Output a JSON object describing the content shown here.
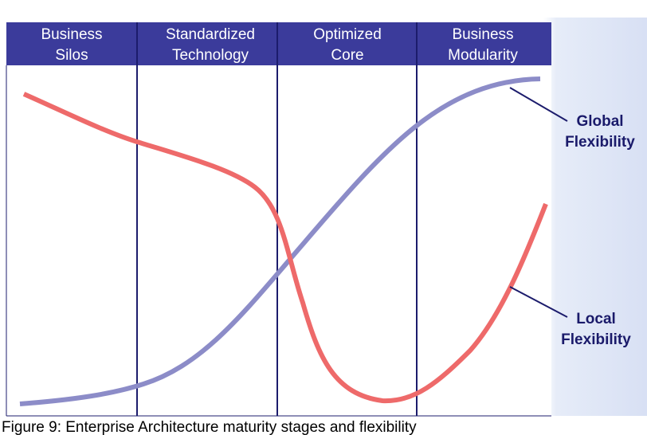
{
  "stages": [
    [
      "Business",
      "Silos"
    ],
    [
      "Standardized",
      "Technology"
    ],
    [
      "Optimized",
      "Core"
    ],
    [
      "Business",
      "Modularity"
    ]
  ],
  "curves": [
    {
      "label": [
        "Global",
        "Flexibility"
      ]
    },
    {
      "label": [
        "Local",
        "Flexibility"
      ]
    }
  ],
  "caption": "Figure 9: Enterprise Architecture maturity stages and flexibility"
}
